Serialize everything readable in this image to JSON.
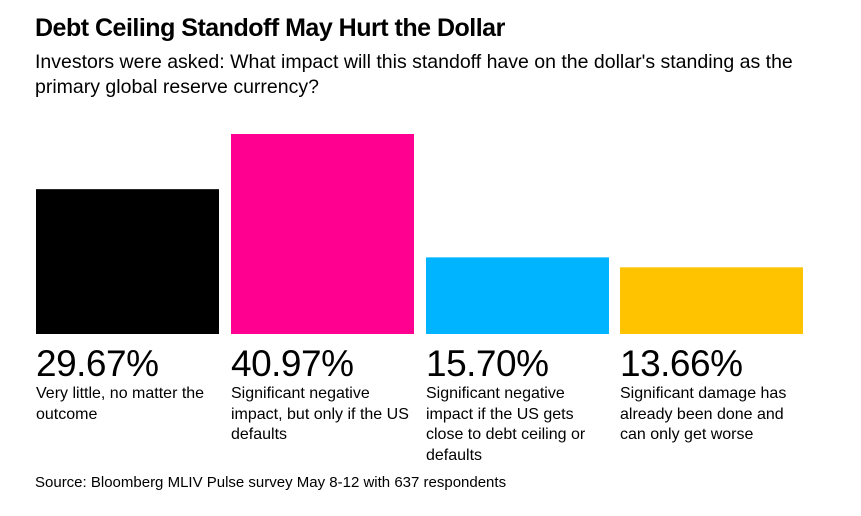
{
  "header": {
    "title": "Debt Ceiling Standoff May Hurt the Dollar",
    "subtitle": "Investors were asked: What impact will this standoff have on the dollar's standing as the primary global reserve currency?"
  },
  "chart_data": {
    "type": "bar",
    "title": "Debt Ceiling Standoff May Hurt the Dollar",
    "subtitle": "Investors were asked: What impact will this standoff have on the dollar's standing as the primary global reserve currency?",
    "categories": [
      "Very little, no matter the outcome",
      "Significant negative impact, but only if the US defaults",
      "Significant negative impact if the US gets close to debt ceiling or defaults",
      "Significant damage has already been done and can only get worse"
    ],
    "values": [
      29.67,
      40.97,
      15.7,
      13.66
    ],
    "value_labels": [
      "29.67%",
      "40.97%",
      "15.70%",
      "13.66%"
    ],
    "colors": [
      "#000000",
      "#ff0090",
      "#00b4ff",
      "#ffc300"
    ],
    "unit": "%",
    "xlabel": "",
    "ylabel": "",
    "ylim": [
      0,
      40.97
    ],
    "grid": false,
    "legend": "none"
  },
  "source": "Source: Bloomberg MLIV Pulse survey May 8-12 with 637 respondents"
}
